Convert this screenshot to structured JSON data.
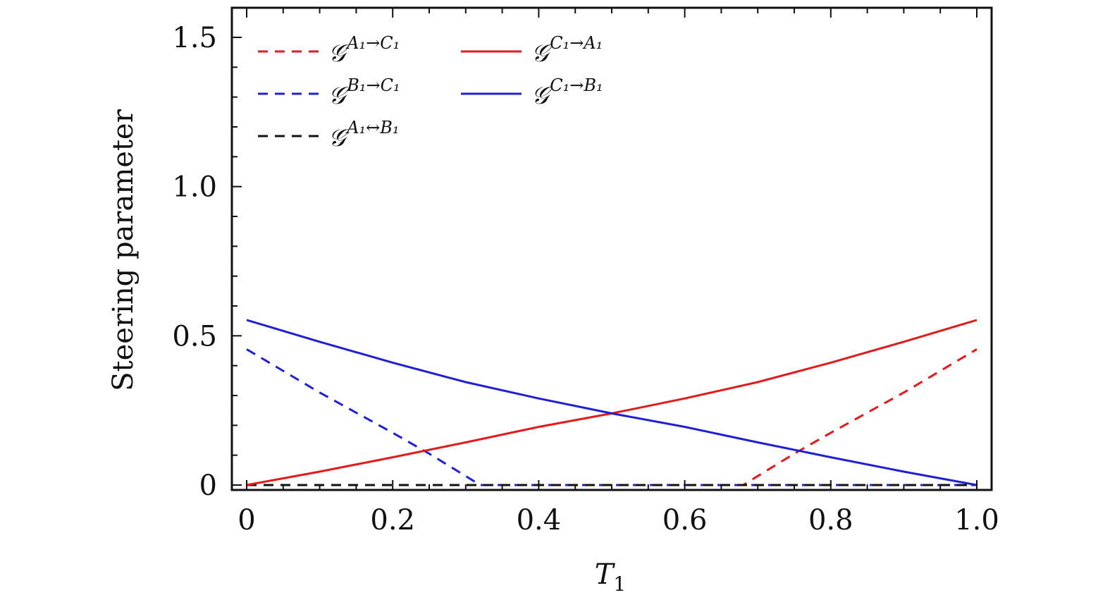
{
  "chart_data": {
    "type": "line",
    "title": "",
    "xlabel": "T1",
    "ylabel": "Steering parameter",
    "xlim": [
      -0.02,
      1.02
    ],
    "ylim": [
      -0.02,
      1.61
    ],
    "x_ticks": [
      0,
      0.2,
      0.4,
      0.6,
      0.8,
      1.0
    ],
    "x_tick_labels": [
      "0",
      "0.2",
      "0.4",
      "0.6",
      "0.8",
      "1.0"
    ],
    "y_ticks": [
      0,
      0.5,
      1.0,
      1.5
    ],
    "y_tick_labels": [
      "0",
      "0.5",
      "1.0",
      "1.5"
    ],
    "grid": false,
    "legend_position": "top-left",
    "series": [
      {
        "name": "G^{A1→C1}",
        "label_main": "𝒢",
        "label_sup": "A₁→C₁",
        "color": "#e31a1c",
        "style": "dashed",
        "x": [
          0,
          0.1,
          0.2,
          0.3,
          0.4,
          0.5,
          0.6,
          0.68,
          0.75,
          0.8,
          0.9,
          1.0
        ],
        "y": [
          0,
          0,
          0,
          0,
          0,
          0,
          0,
          0,
          0.105,
          0.175,
          0.31,
          0.455
        ]
      },
      {
        "name": "G^{B1→C1}",
        "label_main": "𝒢",
        "label_sup": "B₁→C₁",
        "color": "#1f1fd6",
        "style": "dashed",
        "x": [
          0,
          0.1,
          0.2,
          0.25,
          0.32,
          0.4,
          0.6,
          0.8,
          1.0
        ],
        "y": [
          0.455,
          0.31,
          0.175,
          0.105,
          0,
          0,
          0,
          0,
          0
        ]
      },
      {
        "name": "G^{A1↔B1}",
        "label_main": "𝒢",
        "label_sup": "A₁↔B₁",
        "color": "#111111",
        "style": "dashed",
        "x": [
          0,
          0.2,
          0.4,
          0.6,
          0.8,
          1.0
        ],
        "y": [
          0,
          0,
          0,
          0,
          0,
          0
        ]
      },
      {
        "name": "G^{C1→A1}",
        "label_main": "𝒢",
        "label_sup": "C₁→A₁",
        "color": "#e31a1c",
        "style": "solid",
        "x": [
          0,
          0.1,
          0.2,
          0.3,
          0.4,
          0.5,
          0.6,
          0.7,
          0.8,
          0.9,
          1.0
        ],
        "y": [
          0,
          0.045,
          0.093,
          0.143,
          0.195,
          0.24,
          0.29,
          0.345,
          0.41,
          0.48,
          0.553
        ]
      },
      {
        "name": "G^{C1→B1}",
        "label_main": "𝒢",
        "label_sup": "C₁→B₁",
        "color": "#1f1fd6",
        "style": "solid",
        "x": [
          0,
          0.1,
          0.2,
          0.3,
          0.4,
          0.5,
          0.6,
          0.7,
          0.8,
          0.9,
          1.0
        ],
        "y": [
          0.553,
          0.48,
          0.41,
          0.345,
          0.29,
          0.24,
          0.195,
          0.143,
          0.093,
          0.045,
          0
        ]
      }
    ]
  }
}
